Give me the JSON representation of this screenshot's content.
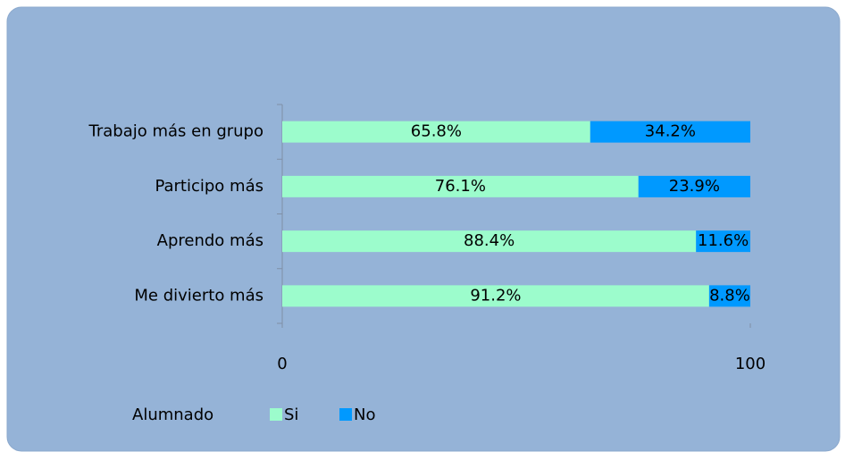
{
  "chart_data": {
    "type": "stacked_barh",
    "categories": [
      "Trabajo más en grupo",
      "Participo más",
      "Aprendo más",
      "Me divierto más"
    ],
    "series": [
      {
        "name": "Si",
        "color": "#9cfccc",
        "values": [
          65.8,
          76.1,
          88.4,
          91.2
        ],
        "value_labels": [
          "65.8%",
          "76.1%",
          "88.4%",
          "91.2%"
        ]
      },
      {
        "name": "No",
        "color": "#0099ff",
        "values": [
          34.2,
          23.9,
          11.6,
          8.8
        ],
        "value_labels": [
          "34.2%",
          "23.9%",
          "11.6%",
          "8.8%"
        ]
      }
    ],
    "xlim": [
      0,
      100
    ],
    "xticks": [
      0,
      100
    ],
    "legend_title": "Alumnado",
    "legend_position": "bottom-left"
  }
}
